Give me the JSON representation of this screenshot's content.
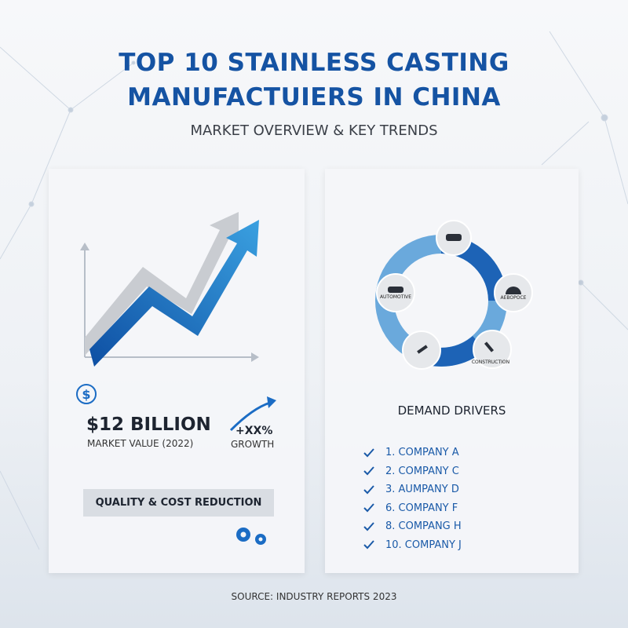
{
  "header": {
    "title_lines": [
      "TOP 10 STAINLESS CASTING",
      "MANUFACTUIERS IN CHINA"
    ],
    "subtitle": "MARKET OVERVIEW & KEY TRENDS"
  },
  "left_panel": {
    "market_value": "$12 BILLION",
    "market_value_caption": "MARKET VALUE (2022)",
    "growth": "+XX%",
    "growth_caption": "GROWTH",
    "badge": "QUALITY & COST REDUCTION"
  },
  "right_panel": {
    "cycle_labels": [
      "AUTOMOTIVE",
      "AEBOPOCE",
      "CONSTRUCTION"
    ],
    "heading": "DEMAND DRIVERS",
    "list": [
      "1. COMPANY A",
      "2. COMPANY C",
      "3. AUMPANY D",
      "6. COMPANY F",
      "8. COMPANG H",
      "10. COMPANY J"
    ]
  },
  "footer": {
    "source": "SOURCE: INDUSTRY REPORTS 2023"
  }
}
